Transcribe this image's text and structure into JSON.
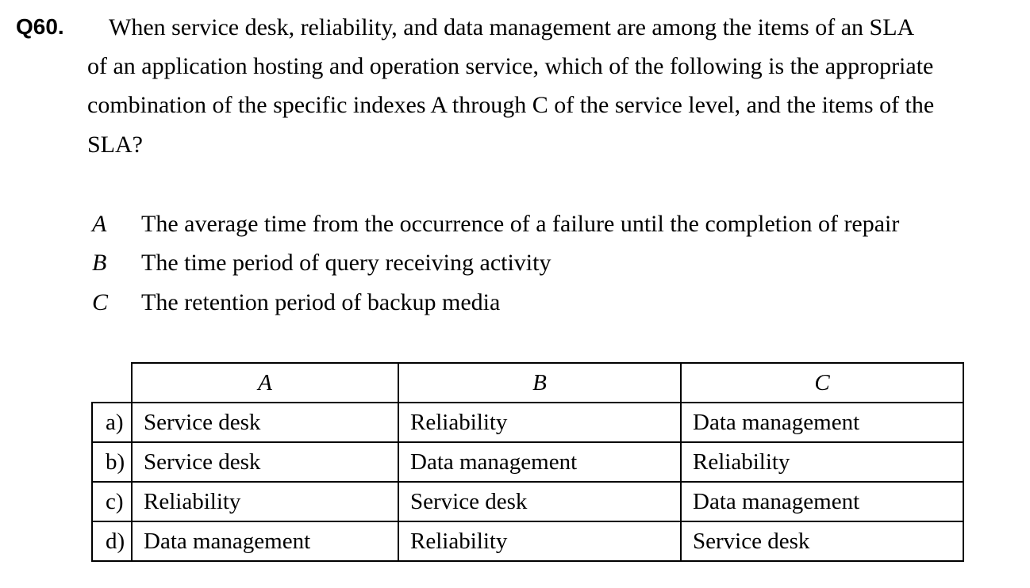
{
  "question": {
    "number": "Q60.",
    "lines": [
      "When service desk, reliability, and data management are among the items of an SLA",
      "of an application hosting and operation service, which of the following is the appropriate",
      "combination of the specific indexes A through C of the service level, and the items of the",
      "SLA?"
    ]
  },
  "indexes": [
    {
      "letter": "A",
      "text": "The average time from the occurrence of a failure until the completion of repair"
    },
    {
      "letter": "B",
      "text": "The time period of query receiving activity"
    },
    {
      "letter": "C",
      "text": "The retention period of backup media"
    }
  ],
  "table": {
    "headers": [
      "A",
      "B",
      "C"
    ],
    "rows": [
      {
        "label": "a)",
        "cells": [
          "Service desk",
          "Reliability",
          "Data management"
        ]
      },
      {
        "label": "b)",
        "cells": [
          "Service desk",
          "Data management",
          "Reliability"
        ]
      },
      {
        "label": "c)",
        "cells": [
          "Reliability",
          "Service desk",
          "Data management"
        ]
      },
      {
        "label": "d)",
        "cells": [
          "Data management",
          "Reliability",
          "Service desk"
        ]
      }
    ]
  }
}
